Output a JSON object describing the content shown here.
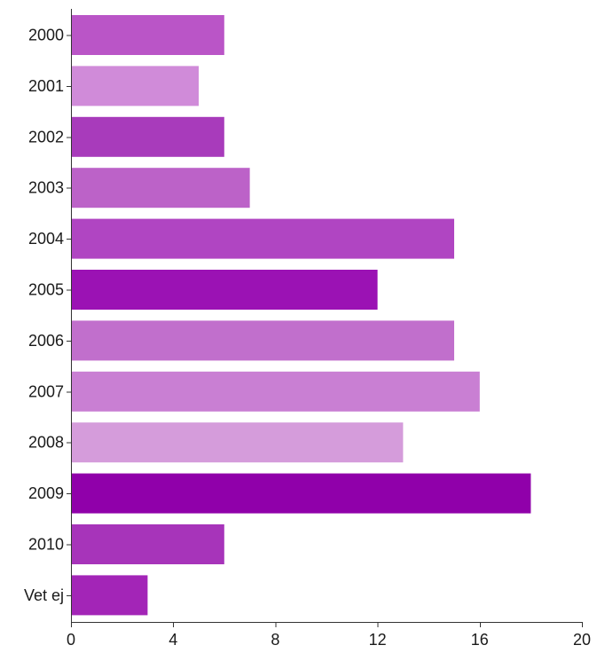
{
  "chart_data": {
    "type": "bar",
    "orientation": "horizontal",
    "title": "",
    "xlabel": "",
    "ylabel": "",
    "categories": [
      "2000",
      "2001",
      "2002",
      "2003",
      "2004",
      "2005",
      "2006",
      "2007",
      "2008",
      "2009",
      "2010",
      "Vet ej"
    ],
    "values": [
      6,
      5,
      6,
      7,
      15,
      12,
      15,
      16,
      13,
      18,
      6,
      3
    ],
    "colors": [
      "#ba55c7",
      "#d08bd9",
      "#a83bbb",
      "#bc62c8",
      "#b045c2",
      "#9b12b4",
      "#c16fcc",
      "#c97fd3",
      "#d59cdb",
      "#9000aa",
      "#a734ba",
      "#a325b7"
    ],
    "xlim": [
      0,
      20
    ],
    "xticks": [
      "0",
      "4",
      "8",
      "12",
      "16",
      "20"
    ],
    "xtick_values": [
      0,
      4,
      8,
      12,
      16,
      20
    ],
    "grid": false,
    "legend": "none"
  }
}
